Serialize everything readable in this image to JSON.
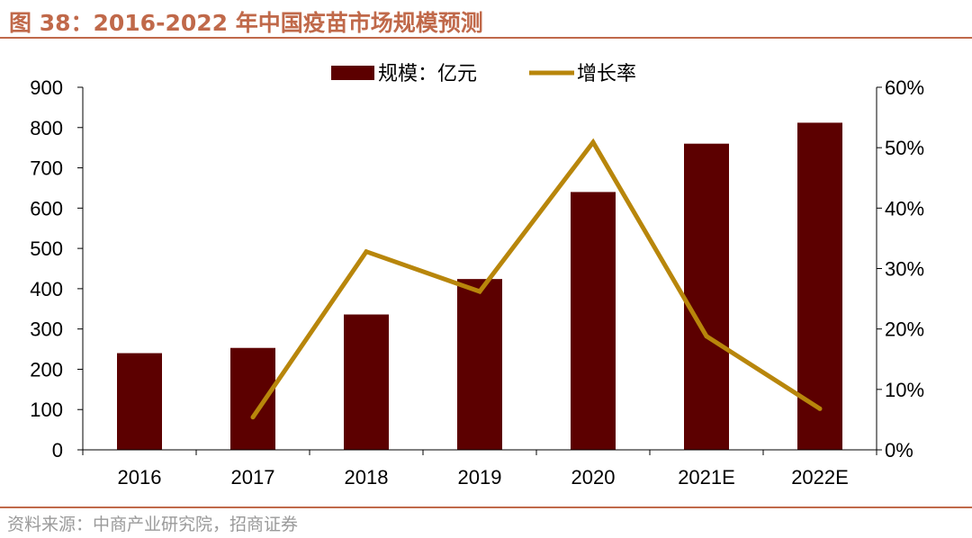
{
  "header": {
    "title": "图 38：2016-2022 年中国疫苗市场规模预测"
  },
  "footer": {
    "source": "资料来源：中商产业研究院，招商证券"
  },
  "colors": {
    "bar": "#5c0000",
    "line": "#b8860b",
    "accent": "#c0694a",
    "axis": "#000000"
  },
  "chart_data": {
    "type": "bar",
    "title": "",
    "categories": [
      "2016",
      "2017",
      "2018",
      "2019",
      "2020",
      "2021E",
      "2022E"
    ],
    "series": [
      {
        "name": "规模：亿元",
        "type": "bar",
        "axis": "left",
        "values": [
          240,
          253,
          336,
          424,
          640,
          760,
          812
        ]
      },
      {
        "name": "增长率",
        "type": "line",
        "axis": "right",
        "values": [
          null,
          5.4,
          32.8,
          26.2,
          50.9,
          18.8,
          6.8
        ]
      }
    ],
    "y_left": {
      "min": 0,
      "max": 900,
      "ticks": [
        "0",
        "100",
        "200",
        "300",
        "400",
        "500",
        "600",
        "700",
        "800",
        "900"
      ]
    },
    "y_right": {
      "min": 0,
      "max": 60,
      "ticks": [
        "0%",
        "10%",
        "20%",
        "30%",
        "40%",
        "50%",
        "60%"
      ]
    },
    "legend_position": "top-center",
    "grid": false
  }
}
